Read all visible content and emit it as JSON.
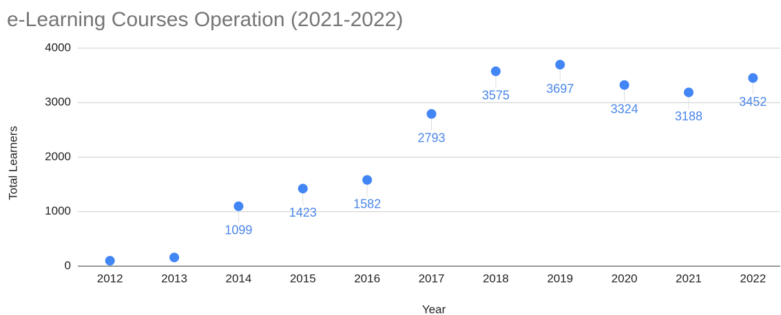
{
  "chart_data": {
    "type": "scatter",
    "title": "e-Learning Courses Operation (2021-2022)",
    "x_label": "Year",
    "y_label": "Total Learners",
    "categories": [
      "2012",
      "2013",
      "2014",
      "2015",
      "2016",
      "2017",
      "2018",
      "2019",
      "2020",
      "2021",
      "2022"
    ],
    "values": [
      100,
      160,
      1099,
      1423,
      1582,
      2793,
      3575,
      3697,
      3324,
      3188,
      3452
    ],
    "value_labels": [
      null,
      null,
      "1099",
      "1423",
      "1582",
      "2793",
      "3575",
      "3697",
      "3324",
      "3188",
      "3452"
    ],
    "color": "#4285f4",
    "ylim": [
      0,
      4000
    ],
    "yticks": [
      0,
      1000,
      2000,
      3000,
      4000
    ],
    "grid": true
  }
}
